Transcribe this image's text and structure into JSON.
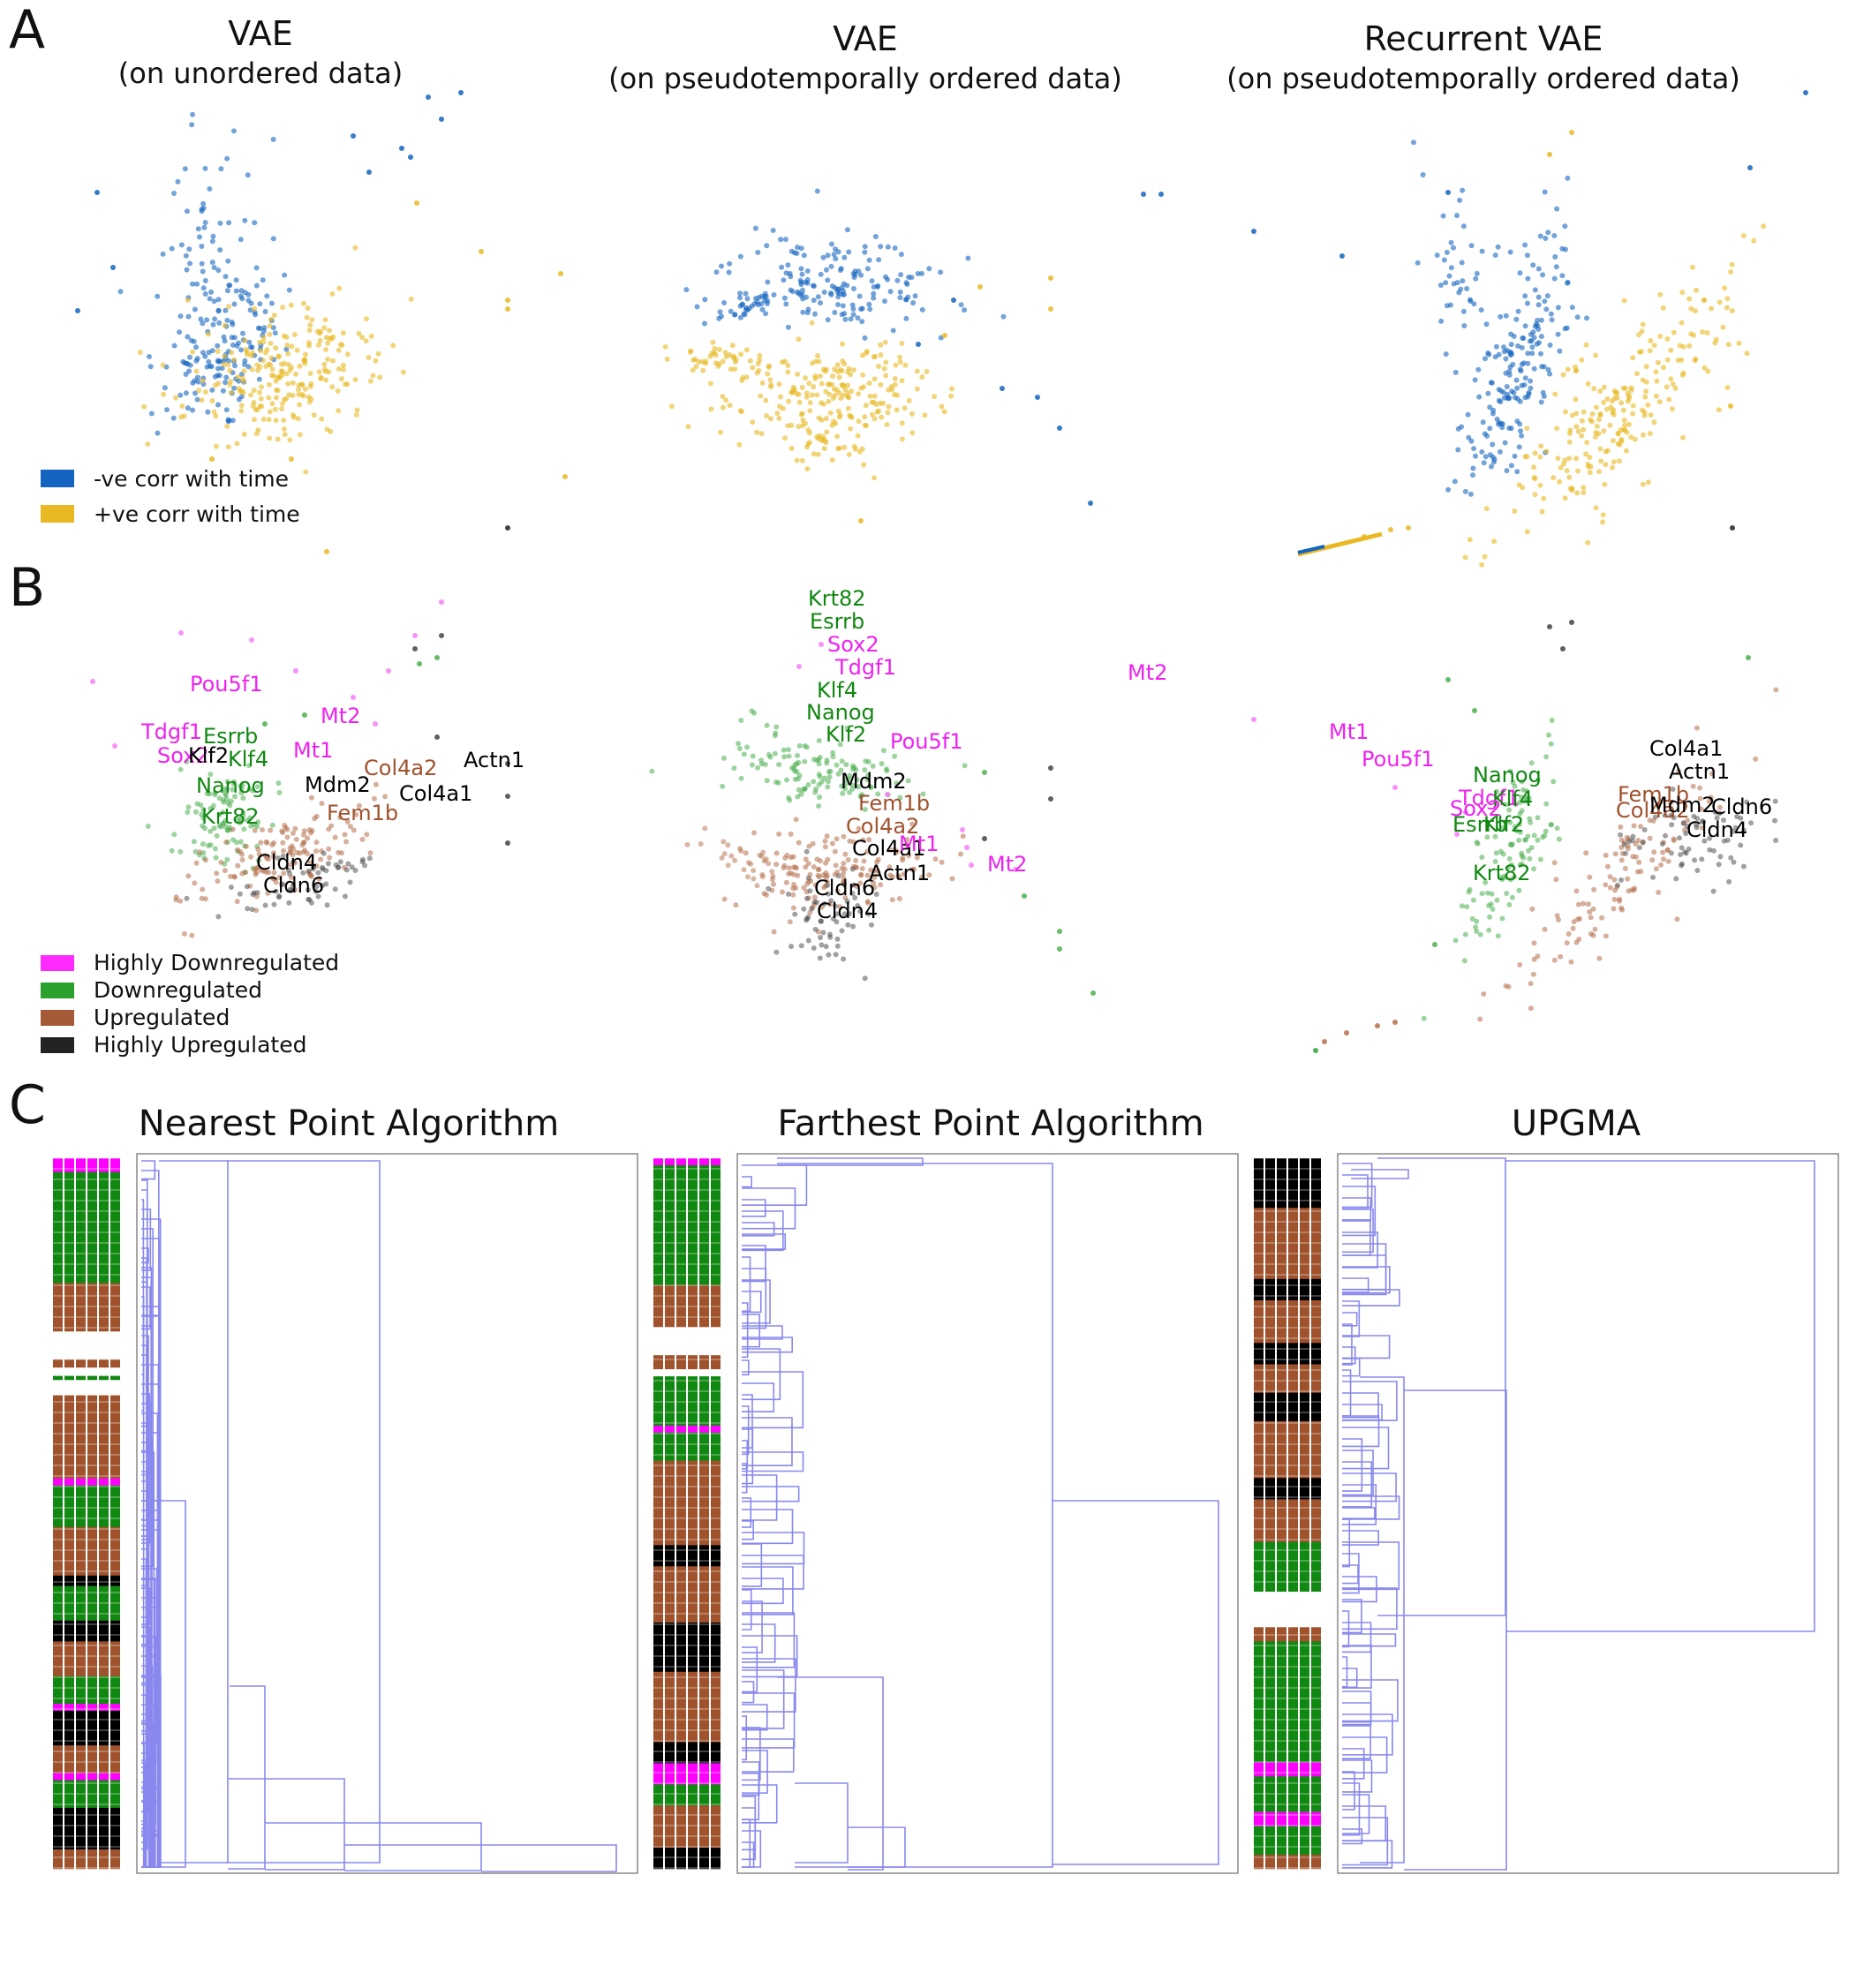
{
  "panel_labels": [
    "A",
    "B",
    "C"
  ],
  "row_a": {
    "titles": [
      {
        "line1": "VAE",
        "line2": "(on unordered data)"
      },
      {
        "line1": "VAE",
        "line2": "(on pseudotemporally ordered data)"
      },
      {
        "line1": "Recurrent VAE",
        "line2": "(on pseudotemporally ordered data)"
      }
    ],
    "legend": [
      {
        "label": "-ve corr with time",
        "color": "#1565c0"
      },
      {
        "label": "+ve corr with time",
        "color": "#e8b923"
      }
    ]
  },
  "row_b": {
    "legend": [
      {
        "label": "Highly Downregulated",
        "color": "#ff2aff"
      },
      {
        "label": "Downregulated",
        "color": "#2ca02c"
      },
      {
        "label": "Upregulated",
        "color": "#a65a38"
      },
      {
        "label": "Highly Upregulated",
        "color": "#222222"
      }
    ],
    "colors": {
      "Highly Downregulated": "#ee22ee",
      "Downregulated": "#118811",
      "Upregulated": "#a0522d",
      "Highly Upregulated": "#000000"
    },
    "plots": [
      {
        "genes": [
          {
            "name": "Pou5f1",
            "cls": "Highly Downregulated"
          },
          {
            "name": "Tdgf1",
            "cls": "Highly Downregulated"
          },
          {
            "name": "Esrrb",
            "cls": "Downregulated"
          },
          {
            "name": "Mt2",
            "cls": "Highly Downregulated"
          },
          {
            "name": "Sox2",
            "cls": "Highly Downregulated"
          },
          {
            "name": "Klf2",
            "cls": "Highly Upregulated"
          },
          {
            "name": "Klf4",
            "cls": "Downregulated"
          },
          {
            "name": "Mt1",
            "cls": "Highly Downregulated"
          },
          {
            "name": "Actn1",
            "cls": "Highly Upregulated"
          },
          {
            "name": "Col4a2",
            "cls": "Upregulated"
          },
          {
            "name": "Nanog",
            "cls": "Downregulated"
          },
          {
            "name": "Mdm2",
            "cls": "Highly Upregulated"
          },
          {
            "name": "Col4a1",
            "cls": "Highly Upregulated"
          },
          {
            "name": "Fem1b",
            "cls": "Upregulated"
          },
          {
            "name": "Krt82",
            "cls": "Downregulated"
          },
          {
            "name": "Cldn4",
            "cls": "Highly Upregulated"
          },
          {
            "name": "Cldn6",
            "cls": "Highly Upregulated"
          }
        ]
      },
      {
        "genes": [
          {
            "name": "Krt82",
            "cls": "Downregulated"
          },
          {
            "name": "Esrrb",
            "cls": "Downregulated"
          },
          {
            "name": "Sox2",
            "cls": "Highly Downregulated"
          },
          {
            "name": "Tdgf1",
            "cls": "Highly Downregulated"
          },
          {
            "name": "Klf4",
            "cls": "Downregulated"
          },
          {
            "name": "Nanog",
            "cls": "Downregulated"
          },
          {
            "name": "Klf2",
            "cls": "Downregulated"
          },
          {
            "name": "Pou5f1",
            "cls": "Highly Downregulated"
          },
          {
            "name": "Mdm2",
            "cls": "Highly Upregulated"
          },
          {
            "name": "Fem1b",
            "cls": "Upregulated"
          },
          {
            "name": "Col4a2",
            "cls": "Upregulated"
          },
          {
            "name": "Col4a1",
            "cls": "Highly Upregulated"
          },
          {
            "name": "Mt1",
            "cls": "Highly Downregulated"
          },
          {
            "name": "Actn1",
            "cls": "Highly Upregulated"
          },
          {
            "name": "Mt2",
            "cls": "Highly Downregulated"
          },
          {
            "name": "Cldn6",
            "cls": "Highly Upregulated"
          },
          {
            "name": "Cldn4",
            "cls": "Highly Upregulated"
          },
          {
            "name": "Mt2",
            "cls": "Highly Downregulated"
          }
        ]
      },
      {
        "genes": [
          {
            "name": "Mt1",
            "cls": "Highly Downregulated"
          },
          {
            "name": "Pou5f1",
            "cls": "Highly Downregulated"
          },
          {
            "name": "Nanog",
            "cls": "Downregulated"
          },
          {
            "name": "Tdgf1",
            "cls": "Highly Downregulated"
          },
          {
            "name": "Klf4",
            "cls": "Downregulated"
          },
          {
            "name": "Sox2",
            "cls": "Highly Downregulated"
          },
          {
            "name": "Esrrb",
            "cls": "Downregulated"
          },
          {
            "name": "Klf2",
            "cls": "Downregulated"
          },
          {
            "name": "Krt82",
            "cls": "Downregulated"
          },
          {
            "name": "Col4a1",
            "cls": "Highly Upregulated"
          },
          {
            "name": "Actn1",
            "cls": "Highly Upregulated"
          },
          {
            "name": "Fem1b",
            "cls": "Upregulated"
          },
          {
            "name": "Col4a2",
            "cls": "Upregulated"
          },
          {
            "name": "Mdm2",
            "cls": "Highly Upregulated"
          },
          {
            "name": "Cldn6",
            "cls": "Highly Upregulated"
          },
          {
            "name": "Cldn4",
            "cls": "Highly Upregulated"
          }
        ]
      }
    ]
  },
  "row_c": {
    "titles": [
      "Nearest Point Algorithm",
      "Farthest Point Algorithm",
      "UPGMA"
    ],
    "line_color": "#8888ee",
    "color_bars": [
      {
        "bands": [
          [
            "Highly Downregulated",
            0.02
          ],
          [
            "Downregulated",
            0.16
          ],
          [
            "Upregulated",
            0.07
          ],
          [
            "white",
            0.04
          ],
          [
            "Upregulated",
            0.012
          ],
          [
            "white",
            0.012
          ],
          [
            "Downregulated",
            0.006
          ],
          [
            "white",
            0.022
          ],
          [
            "Upregulated",
            0.12
          ],
          [
            "Highly Downregulated",
            0.01
          ],
          [
            "Downregulated",
            0.06
          ],
          [
            "Upregulated",
            0.07
          ],
          [
            "Highly Upregulated",
            0.015
          ],
          [
            "Downregulated",
            0.05
          ],
          [
            "Highly Upregulated",
            0.03
          ],
          [
            "Upregulated",
            0.05
          ],
          [
            "Downregulated",
            0.04
          ],
          [
            "Highly Downregulated",
            0.01
          ],
          [
            "Highly Upregulated",
            0.05
          ],
          [
            "Upregulated",
            0.04
          ],
          [
            "Highly Downregulated",
            0.01
          ],
          [
            "Downregulated",
            0.04
          ],
          [
            "Highly Upregulated",
            0.06
          ],
          [
            "Upregulated",
            0.028
          ]
        ]
      },
      {
        "bands": [
          [
            "Highly Downregulated",
            0.01
          ],
          [
            "Downregulated",
            0.17
          ],
          [
            "Upregulated",
            0.06
          ],
          [
            "white",
            0.04
          ],
          [
            "Upregulated",
            0.02
          ],
          [
            "white",
            0.01
          ],
          [
            "Downregulated",
            0.07
          ],
          [
            "Highly Downregulated",
            0.01
          ],
          [
            "Downregulated",
            0.04
          ],
          [
            "Upregulated",
            0.12
          ],
          [
            "Highly Upregulated",
            0.03
          ],
          [
            "Upregulated",
            0.08
          ],
          [
            "Highly Upregulated",
            0.07
          ],
          [
            "Upregulated",
            0.1
          ],
          [
            "Highly Upregulated",
            0.03
          ],
          [
            "Highly Downregulated",
            0.03
          ],
          [
            "Downregulated",
            0.03
          ],
          [
            "Upregulated",
            0.06
          ],
          [
            "Highly Upregulated",
            0.03
          ]
        ]
      },
      {
        "bands": [
          [
            "Highly Upregulated",
            0.07
          ],
          [
            "Upregulated",
            0.1
          ],
          [
            "Highly Upregulated",
            0.03
          ],
          [
            "Upregulated",
            0.06
          ],
          [
            "Highly Upregulated",
            0.03
          ],
          [
            "Upregulated",
            0.04
          ],
          [
            "Highly Upregulated",
            0.04
          ],
          [
            "Upregulated",
            0.08
          ],
          [
            "Highly Upregulated",
            0.03
          ],
          [
            "Upregulated",
            0.06
          ],
          [
            "Downregulated",
            0.07
          ],
          [
            "white",
            0.05
          ],
          [
            "Upregulated",
            0.02
          ],
          [
            "Downregulated",
            0.17
          ],
          [
            "Highly Downregulated",
            0.02
          ],
          [
            "Downregulated",
            0.05
          ],
          [
            "Highly Downregulated",
            0.02
          ],
          [
            "Downregulated",
            0.04
          ],
          [
            "Upregulated",
            0.02
          ]
        ]
      }
    ]
  }
}
